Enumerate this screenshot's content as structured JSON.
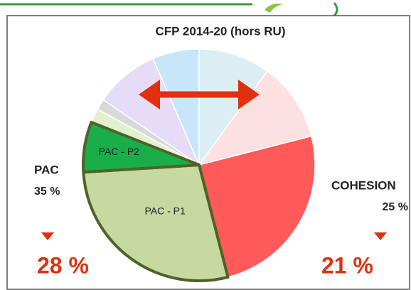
{
  "chart_data": {
    "type": "pie",
    "title": "CFP 2014-20 (hors RU)",
    "categories": [
      null,
      null,
      null,
      "PAC - P1",
      "PAC - P2",
      null,
      null,
      null,
      null
    ],
    "values": [
      10,
      11,
      25,
      28,
      7,
      2,
      1.5,
      9,
      6.5
    ],
    "colors": [
      "#dbeef4",
      "#fde0e0",
      "#ff5a5a",
      "#c5d9a0",
      "#1aae4a",
      "#e2f0d0",
      "#d9d9d9",
      "#e6dcf7",
      "#c8e6fa"
    ],
    "outline_color": "#4f6228",
    "annotations": [
      "PAC",
      "35 %",
      "COHESION",
      "25 %",
      "28 %",
      "21 %"
    ]
  }
}
